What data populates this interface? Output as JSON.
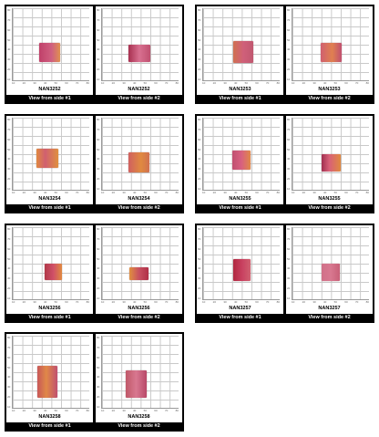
{
  "cards": [
    {
      "panels": [
        {
          "code": "NAN3252",
          "view": "View from side #1"
        },
        {
          "code": "NAN3252",
          "view": "View from side #2"
        }
      ]
    },
    {
      "panels": [
        {
          "code": "NAN3253",
          "view": "View from side #1"
        },
        {
          "code": "NAN3253",
          "view": "View from side #2"
        }
      ]
    },
    {
      "panels": [
        {
          "code": "NAN3254",
          "view": "View from side #1"
        },
        {
          "code": "NAN3254",
          "view": "View from side #2"
        }
      ]
    },
    {
      "panels": [
        {
          "code": "NAN3255",
          "view": "View from side #1"
        },
        {
          "code": "NAN3255",
          "view": "View from side #2"
        }
      ]
    },
    {
      "panels": [
        {
          "code": "NAN3256",
          "view": "View from side #1"
        },
        {
          "code": "NAN3256",
          "view": "View from side #2"
        }
      ]
    },
    {
      "panels": [
        {
          "code": "NAN3257",
          "view": "View from side #1"
        },
        {
          "code": "NAN3257",
          "view": "View from side #2"
        }
      ]
    },
    {
      "panels": [
        {
          "code": "NAN3258",
          "view": "View from side #1"
        },
        {
          "code": "NAN3258",
          "view": "View from side #2"
        }
      ]
    }
  ],
  "axis_ticks": [
    "10",
    "20",
    "30",
    "40",
    "50",
    "60",
    "70",
    "80"
  ],
  "colors": {
    "gem_pink": "#d0506e",
    "gem_orange": "#e0883a",
    "gem_dark": "#a02c4a",
    "frame": "#000000"
  }
}
